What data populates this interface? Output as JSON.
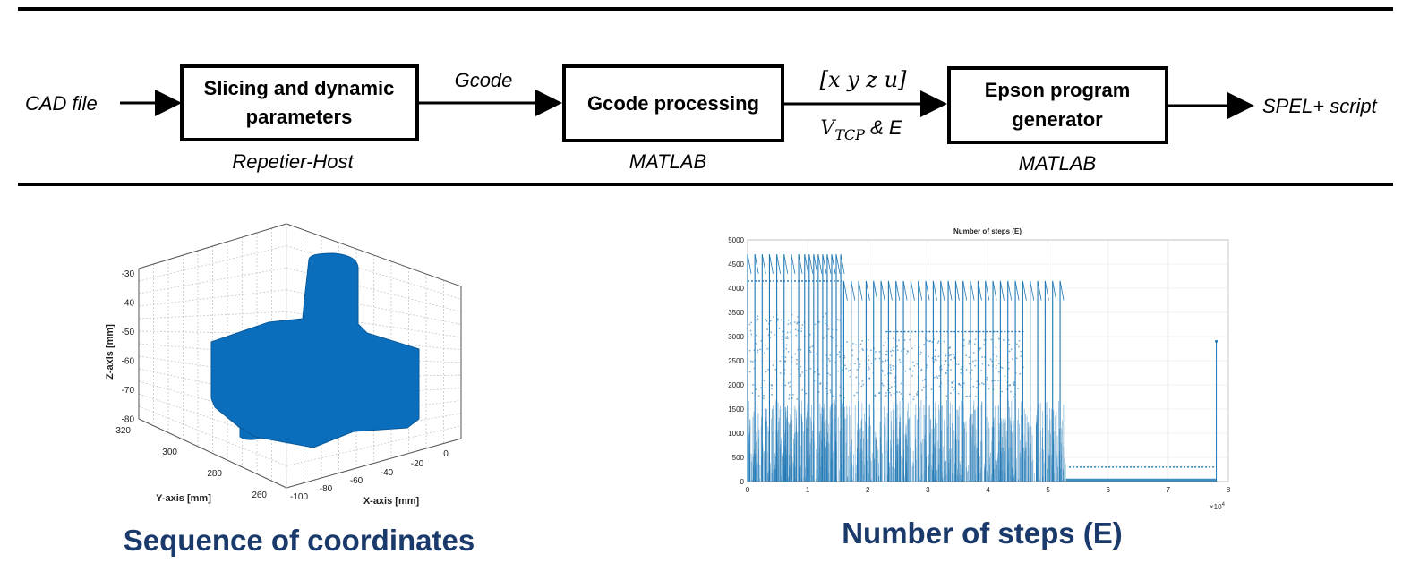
{
  "flow": {
    "input_label": "CAD file",
    "output_label": "SPEL+ script",
    "boxes": [
      {
        "title_line1": "Slicing and dynamic",
        "title_line2": "parameters",
        "tool": "Repetier-Host"
      },
      {
        "title_line1": "Gcode processing",
        "title_line2": "",
        "tool": "MATLAB"
      },
      {
        "title_line1": "Epson program",
        "title_line2": "generator",
        "tool": "MATLAB"
      }
    ],
    "link1_label": "Gcode",
    "link2_label_top": "[x y z u]",
    "link2_label_bottom_main": "V",
    "link2_label_bottom_sub": "TCP",
    "link2_label_bottom_rest": " & E"
  },
  "left_panel": {
    "caption": "Sequence of coordinates",
    "z_axis_label": "Z-axis [mm]",
    "y_axis_label": "Y-axis [mm]",
    "x_axis_label": "X-axis [mm]",
    "z_ticks": [
      "-30",
      "-40",
      "-50",
      "-60",
      "-70",
      "-80"
    ],
    "y_ticks": [
      "320",
      "300",
      "280",
      "260"
    ],
    "x_ticks": [
      "-100",
      "-80",
      "-60",
      "-40",
      "-20",
      "0"
    ],
    "fill_color": "#0a6ebd"
  },
  "right_panel": {
    "caption": "Number of steps (E)",
    "chart_data": {
      "type": "line",
      "title": "Number of steps (E)",
      "xlabel": "",
      "ylabel": "",
      "x_multiplier": "×10",
      "x_multiplier_exp": "4",
      "xlim": [
        0,
        8
      ],
      "ylim": [
        0,
        5000
      ],
      "x_ticks": [
        "0",
        "1",
        "2",
        "3",
        "4",
        "5",
        "6",
        "7",
        "8"
      ],
      "y_ticks": [
        "0",
        "500",
        "1000",
        "1500",
        "2000",
        "2500",
        "3000",
        "3500",
        "4000",
        "4500",
        "5000"
      ],
      "color": "#1f77b4",
      "peak_segments": [
        {
          "x_start": 0.0,
          "x_end": 0.85,
          "count": 8,
          "peak": 4700
        },
        {
          "x_start": 0.95,
          "x_end": 1.55,
          "count": 9,
          "peak": 4700
        },
        {
          "x_start": 1.6,
          "x_end": 5.2,
          "count": 30,
          "peak": 4150
        }
      ],
      "plateaus": [
        {
          "x_start": 0.0,
          "x_end": 1.6,
          "y": 4150
        },
        {
          "x_start": 2.3,
          "x_end": 4.6,
          "y": 3100
        },
        {
          "x_start": 5.35,
          "x_end": 7.8,
          "y": 300
        }
      ],
      "isolated_spike": {
        "x": 7.8,
        "y": 2900
      },
      "dense_region": {
        "x_start": 0.0,
        "x_end": 5.3,
        "y_max": 1700
      },
      "tail_region": {
        "x_start": 5.3,
        "x_end": 7.8,
        "y_max": 60
      }
    }
  }
}
